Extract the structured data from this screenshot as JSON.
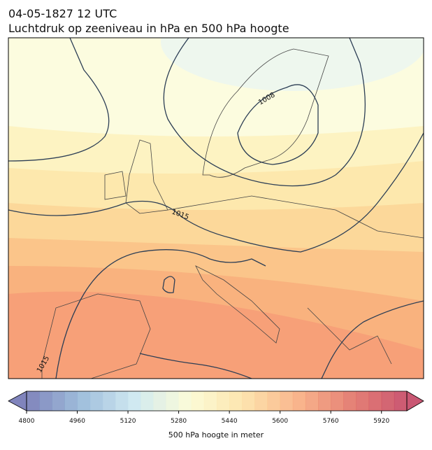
{
  "header": {
    "title": "04-05-1827 12 UTC",
    "subtitle": "Luchtdruk op zeeniveau in hPa en 500 hPa hoogte"
  },
  "map": {
    "contour_labels": [
      "1008",
      "1015",
      "1015"
    ]
  },
  "colorbar": {
    "label": "500 hPa hoogte in meter",
    "range": [
      4800,
      6000
    ],
    "step": 40,
    "ticks": [
      4800,
      4960,
      5120,
      5280,
      5440,
      5600,
      5760,
      5920
    ],
    "colors": [
      "#6a6fb0",
      "#8fb3d6",
      "#c9e6ef",
      "#fbfbd0",
      "#fde0a0",
      "#f8a878",
      "#e06a5e",
      "#c03a5a"
    ]
  }
}
